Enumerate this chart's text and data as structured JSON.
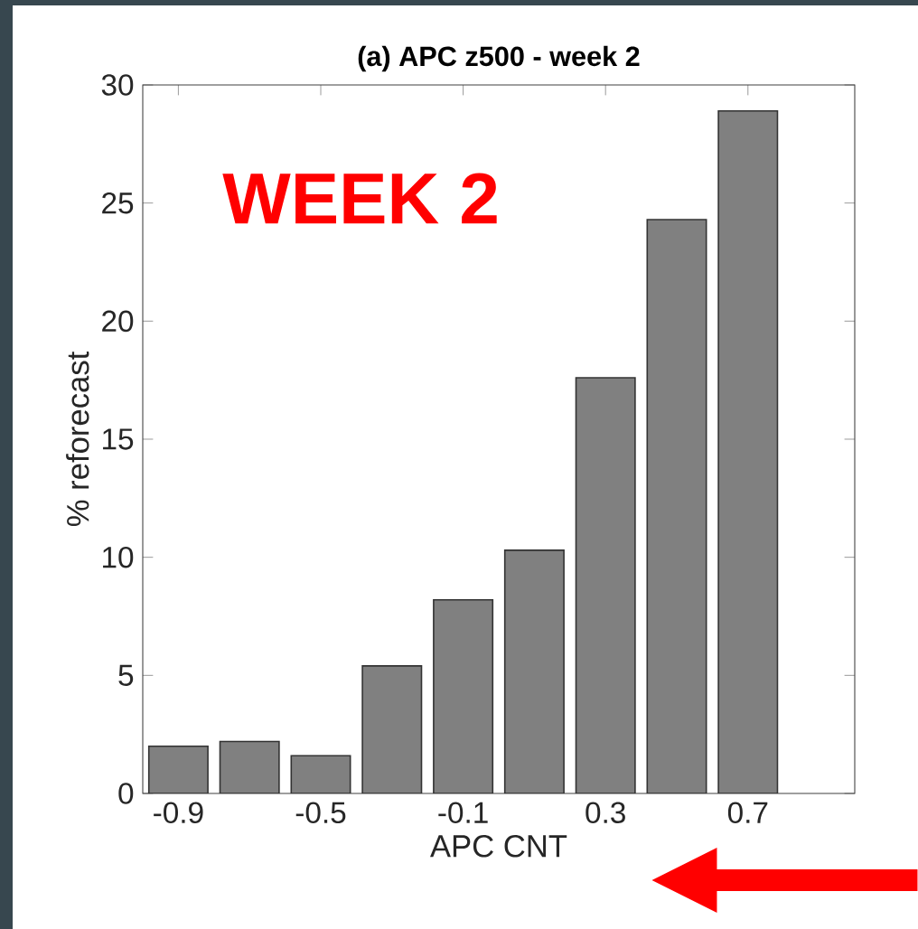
{
  "chart_data": {
    "type": "bar",
    "title": "(a) APC z500 - week 2",
    "xlabel": "APC CNT",
    "ylabel": "% reforecast",
    "annotations": [
      "WEEK 2"
    ],
    "x": [
      -0.9,
      -0.7,
      -0.5,
      -0.3,
      -0.1,
      0.1,
      0.3,
      0.5,
      0.7
    ],
    "values": [
      2.0,
      2.2,
      1.6,
      5.4,
      8.2,
      10.3,
      17.6,
      24.3,
      28.9
    ],
    "color": "#808080",
    "xlim": [
      -1,
      1
    ],
    "xticks": [
      -0.9,
      -0.5,
      -0.1,
      0.3,
      0.7
    ],
    "ylim": [
      0,
      30
    ],
    "yticks": [
      0,
      5,
      10,
      15,
      20,
      25,
      30
    ]
  }
}
